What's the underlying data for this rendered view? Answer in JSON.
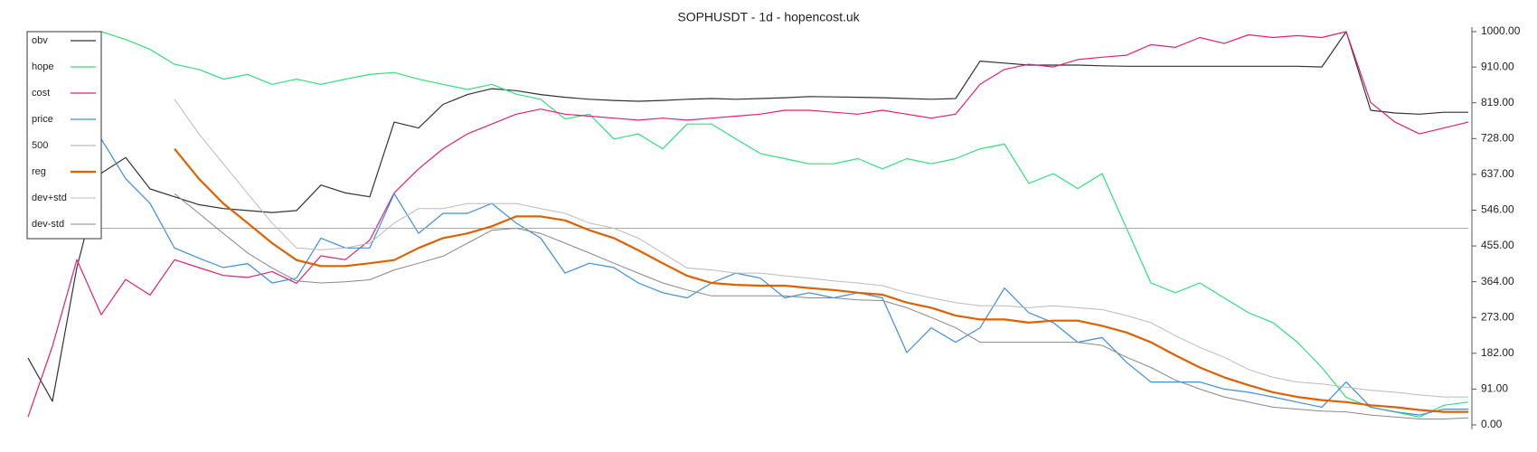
{
  "chart_data": {
    "type": "line",
    "title": "SOPHUSDT - 1d - hopencost.uk",
    "ylim": [
      0,
      1000
    ],
    "yticks": [
      {
        "value": 0,
        "label": "0.00"
      },
      {
        "value": 91,
        "label": "91.00"
      },
      {
        "value": 182,
        "label": "182.00"
      },
      {
        "value": 273,
        "label": "273.00"
      },
      {
        "value": 364,
        "label": "364.00"
      },
      {
        "value": 455,
        "label": "455.00"
      },
      {
        "value": 546,
        "label": "546.00"
      },
      {
        "value": 637,
        "label": "637.00"
      },
      {
        "value": 728,
        "label": "728.00"
      },
      {
        "value": 819,
        "label": "819.00"
      },
      {
        "value": 910,
        "label": "910.00"
      },
      {
        "value": {
          "value": 1000,
          "label": "1000.00"
        },
        "label": "1000.00"
      }
    ],
    "legend": "upper left",
    "series": [
      {
        "name": "obv",
        "color": "#333333",
        "width": 1.2,
        "values": [
          170,
          60,
          400,
          640,
          680,
          600,
          580,
          560,
          550,
          545,
          540,
          545,
          610,
          590,
          580,
          770,
          755,
          815,
          840,
          855,
          850,
          840,
          833,
          828,
          825,
          823,
          825,
          828,
          830,
          828,
          830,
          832,
          835,
          834,
          833,
          832,
          830,
          828,
          830,
          925,
          920,
          915,
          915,
          915,
          913,
          912,
          912,
          912,
          912,
          912,
          912,
          912,
          912,
          910,
          1000,
          800,
          793,
          790,
          795,
          795
        ]
      },
      {
        "name": "hope",
        "color": "#2fe07a",
        "width": 1.2,
        "values": [
          null,
          null,
          null,
          1000,
          980,
          955,
          917,
          904,
          879,
          891,
          866,
          879,
          866,
          879,
          891,
          896,
          879,
          866,
          853,
          866,
          841,
          828,
          778,
          790,
          727,
          740,
          702,
          765,
          765,
          727,
          690,
          677,
          664,
          664,
          677,
          651,
          677,
          664,
          677,
          702,
          714,
          614,
          639,
          601,
          639,
          500,
          361,
          336,
          361,
          323,
          285,
          260,
          210,
          146,
          70,
          45,
          33,
          20,
          50,
          58
        ]
      },
      {
        "name": "cost",
        "color": "#e0207a",
        "width": 1.2,
        "values": [
          20,
          200,
          420,
          280,
          370,
          330,
          420,
          400,
          380,
          375,
          390,
          360,
          430,
          420,
          470,
          590,
          651,
          702,
          740,
          765,
          790,
          803,
          790,
          785,
          780,
          775,
          780,
          775,
          780,
          785,
          790,
          800,
          800,
          795,
          790,
          800,
          790,
          780,
          790,
          866,
          904,
          917,
          910,
          929,
          935,
          940,
          967,
          960,
          985,
          970,
          992,
          985,
          990,
          985,
          1000,
          820,
          770,
          740,
          755,
          770
        ]
      },
      {
        "name": "price",
        "color": "#3a8fdf",
        "width": 1.2,
        "values": [
          null,
          null,
          null,
          727,
          626,
          563,
          450,
          424,
          400,
          410,
          361,
          373,
          475,
          450,
          450,
          588,
          487,
          538,
          538,
          563,
          513,
          475,
          386,
          411,
          400,
          361,
          336,
          323,
          361,
          386,
          373,
          323,
          336,
          323,
          336,
          323,
          184,
          247,
          210,
          247,
          348,
          285,
          260,
          210,
          222,
          159,
          109,
          109,
          109,
          91,
          83,
          71,
          58,
          45,
          109,
          45,
          33,
          25,
          40,
          40
        ]
      },
      {
        "name": "500",
        "color": "#aaaaaa",
        "width": 1,
        "values": [
          500,
          500,
          500,
          500,
          500,
          500,
          500,
          500,
          500,
          500,
          500,
          500,
          500,
          500,
          500,
          500,
          500,
          500,
          500,
          500,
          500,
          500,
          500,
          500,
          500,
          500,
          500,
          500,
          500,
          500,
          500,
          500,
          500,
          500,
          500,
          500,
          500,
          500,
          500,
          500,
          500,
          500,
          500,
          500,
          500,
          500,
          500,
          500,
          500,
          500,
          500,
          500,
          500,
          500,
          500,
          500,
          500,
          500,
          500,
          500
        ]
      },
      {
        "name": "reg",
        "color": "#e06000",
        "width": 2.2,
        "values": [
          null,
          null,
          null,
          null,
          null,
          null,
          702,
          626,
          563,
          513,
          462,
          419,
          404,
          404,
          411,
          419,
          450,
          475,
          487,
          505,
          530,
          530,
          520,
          495,
          475,
          444,
          411,
          379,
          361,
          356,
          354,
          354,
          348,
          343,
          336,
          331,
          311,
          298,
          278,
          268,
          268,
          260,
          265,
          265,
          252,
          235,
          210,
          177,
          146,
          121,
          101,
          83,
          71,
          63,
          58,
          50,
          45,
          38,
          33,
          33
        ]
      },
      {
        "name": "dev+std",
        "color": "#bbbbbb",
        "width": 1,
        "values": [
          null,
          null,
          null,
          null,
          null,
          null,
          828,
          740,
          664,
          588,
          513,
          450,
          445,
          450,
          462,
          513,
          550,
          550,
          563,
          563,
          563,
          550,
          538,
          513,
          500,
          475,
          437,
          399,
          394,
          386,
          386,
          379,
          373,
          366,
          361,
          354,
          336,
          323,
          311,
          303,
          303,
          298,
          303,
          298,
          293,
          278,
          260,
          227,
          197,
          172,
          141,
          121,
          109,
          104,
          96,
          88,
          83,
          76,
          71,
          71
        ]
      },
      {
        "name": "dev-std",
        "color": "#888888",
        "width": 1,
        "values": [
          null,
          null,
          null,
          null,
          null,
          null,
          588,
          538,
          487,
          437,
          399,
          366,
          361,
          364,
          369,
          394,
          411,
          429,
          462,
          495,
          500,
          487,
          462,
          437,
          411,
          386,
          361,
          343,
          328,
          328,
          328,
          328,
          323,
          323,
          318,
          316,
          298,
          273,
          247,
          210,
          210,
          210,
          210,
          210,
          202,
          172,
          146,
          114,
          91,
          71,
          58,
          45,
          40,
          35,
          33,
          25,
          20,
          15,
          15,
          18
        ]
      }
    ]
  }
}
